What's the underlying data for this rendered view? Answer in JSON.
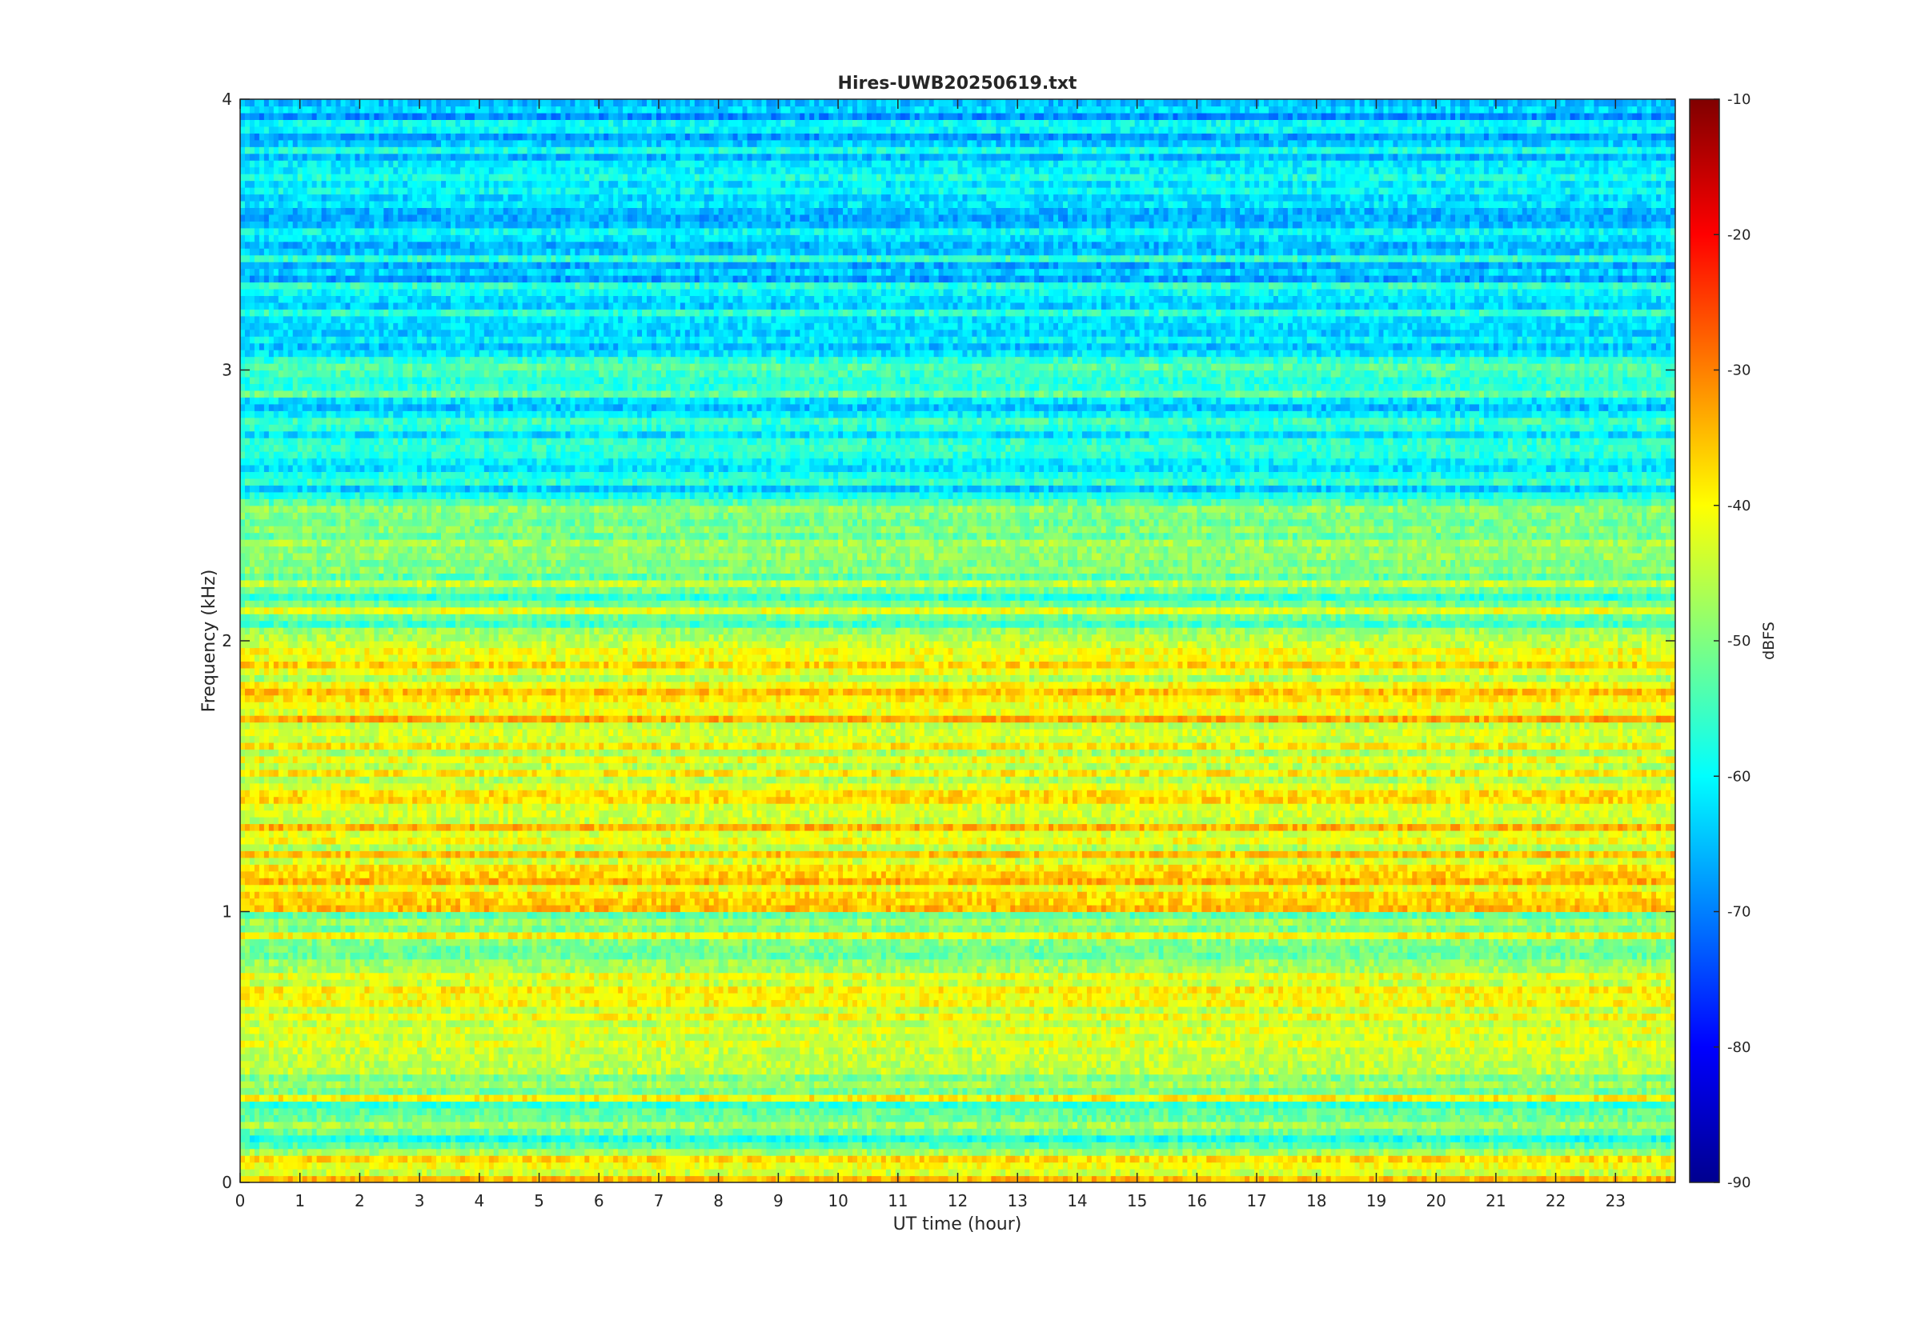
{
  "chart_data": {
    "type": "heatmap",
    "title": "Hires-UWB20250619.txt",
    "xlabel": "UT time (hour)",
    "ylabel": "Frequency (kHz)",
    "xlim": [
      0,
      24
    ],
    "ylim": [
      0,
      4
    ],
    "x_ticks": [
      0,
      1,
      2,
      3,
      4,
      5,
      6,
      7,
      8,
      9,
      10,
      11,
      12,
      13,
      14,
      15,
      16,
      17,
      18,
      19,
      20,
      21,
      22,
      23
    ],
    "x_tick_labels": [
      "0",
      "1",
      "2",
      "3",
      "4",
      "5",
      "6",
      "7",
      "8",
      "9",
      "10",
      "11",
      "12",
      "13",
      "14",
      "15",
      "16",
      "17",
      "18",
      "19",
      "20",
      "21",
      "22",
      "23"
    ],
    "y_ticks": [
      0,
      1,
      2,
      3,
      4
    ],
    "y_tick_labels": [
      "0",
      "1",
      "2",
      "3",
      "4"
    ],
    "colorbar": {
      "label": "dBFS",
      "range": [
        -90,
        -10
      ],
      "ticks": [
        -90,
        -80,
        -70,
        -60,
        -50,
        -40,
        -30,
        -20,
        -10
      ],
      "tick_labels": [
        "-90",
        "-80",
        "-70",
        "-60",
        "-50",
        "-40",
        "-30",
        "-20",
        "-10"
      ],
      "colormap": "jet"
    },
    "grid": false,
    "levels_by_band": [
      {
        "freq_khz": [
          0.0,
          0.1
        ],
        "dbfs": -42
      },
      {
        "freq_khz": [
          0.1,
          0.3
        ],
        "dbfs": -55
      },
      {
        "freq_khz": [
          0.3,
          0.5
        ],
        "dbfs": -48
      },
      {
        "freq_khz": [
          0.5,
          0.8
        ],
        "dbfs": -44
      },
      {
        "freq_khz": [
          0.8,
          1.0
        ],
        "dbfs": -50
      },
      {
        "freq_khz": [
          1.0,
          1.2
        ],
        "dbfs": -40
      },
      {
        "freq_khz": [
          1.2,
          2.0
        ],
        "dbfs": -42
      },
      {
        "freq_khz": [
          2.0,
          2.5
        ],
        "dbfs": -52
      },
      {
        "freq_khz": [
          2.5,
          3.1
        ],
        "dbfs": -60
      },
      {
        "freq_khz": [
          3.1,
          4.0
        ],
        "dbfs": -64
      }
    ]
  }
}
